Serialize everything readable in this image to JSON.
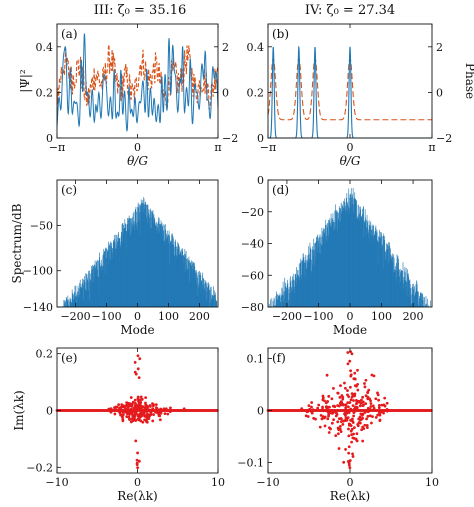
{
  "column_titles": {
    "left": "III: ζ₀ = 35.16",
    "right": "IV: ζ₀ = 27.34"
  },
  "colors": {
    "blue": "#1f77b4",
    "orange": "#d9541a",
    "red": "#e41a1c",
    "axis": "#111111"
  },
  "chart_data": [
    {
      "id": "a",
      "panel_label": "(a)",
      "type": "line",
      "xlabel": "θ/G",
      "ylabel": "|Ψ|²",
      "y2label": "",
      "xlim": [
        -3.1416,
        3.1416
      ],
      "ylim": [
        0,
        0.5
      ],
      "y2lim": [
        -2,
        3
      ],
      "xticks": [
        "−π",
        "0",
        "π"
      ],
      "yticks": [
        "0",
        "0.2",
        "0.4"
      ],
      "y2ticks": [
        "−2",
        "0",
        "2"
      ],
      "series": [
        {
          "axis": "left",
          "style": "solid",
          "color": "#1f77b4",
          "description_values": {
            "peak_max": 0.44,
            "typical_peak": 0.25,
            "n_peaks_approx": 40
          }
        },
        {
          "axis": "right",
          "style": "dashed",
          "color": "#d9541a",
          "description_values": {
            "range": [
              -1.2,
              2.2
            ]
          }
        }
      ]
    },
    {
      "id": "b",
      "panel_label": "(b)",
      "type": "line",
      "xlabel": "θ/G",
      "ylabel": "",
      "y2label": "Phase",
      "xlim": [
        -3.1416,
        3.1416
      ],
      "ylim": [
        0,
        0.5
      ],
      "y2lim": [
        -2,
        3
      ],
      "xticks": [
        "−π",
        "0",
        "π"
      ],
      "yticks": [
        "0",
        "0.2",
        "0.4"
      ],
      "y2ticks": [
        "−2",
        "0",
        "2"
      ],
      "pulse_positions": [
        -2.94,
        -1.96,
        -1.34,
        0.0
      ],
      "pulse_amplitudes": [
        0.4,
        0.4,
        0.4,
        0.4
      ],
      "phase_background": -1.2,
      "phase_peak": 1.5
    },
    {
      "id": "c",
      "panel_label": "(c)",
      "type": "bar",
      "xlabel": "Mode",
      "ylabel": "Spectrum/dB",
      "xlim": [
        -260,
        260
      ],
      "ylim": [
        -140,
        0
      ],
      "xticks": [
        -200,
        -100,
        0,
        100,
        200
      ],
      "yticks": [
        -140,
        -100,
        -50
      ],
      "ytick_labels": [
        "−140",
        "−100",
        "−50"
      ],
      "envelope": {
        "peak_db": -15,
        "edge_db": -130,
        "peak_mode": 20
      }
    },
    {
      "id": "d",
      "panel_label": "(d)",
      "type": "bar",
      "xlabel": "Mode",
      "ylabel": "",
      "xlim": [
        -260,
        260
      ],
      "ylim": [
        -80,
        0
      ],
      "xticks": [
        -200,
        -100,
        0,
        100,
        200
      ],
      "yticks": [
        -80,
        -60,
        -40,
        -20,
        0
      ],
      "ytick_labels": [
        "−80",
        "−60",
        "−40",
        "−20",
        "0"
      ],
      "envelope": {
        "peak_db": -2,
        "edge_db": -75,
        "peak_mode": 0
      }
    },
    {
      "id": "e",
      "panel_label": "(e)",
      "type": "scatter",
      "xlabel": "Re(λk)",
      "ylabel": "Im(λk)",
      "xlim": [
        -10,
        10
      ],
      "ylim": [
        -0.22,
        0.22
      ],
      "xticks": [
        -10,
        0,
        10
      ],
      "xtick_labels": [
        "−10",
        "0",
        "10"
      ],
      "yticks": [
        -0.2,
        0,
        0.2
      ],
      "ytick_labels": [
        "−0.2",
        "0",
        "0.2"
      ],
      "cluster": {
        "x_spread": 3.0,
        "y_spread": 0.04,
        "line_extent": 10
      }
    },
    {
      "id": "f",
      "panel_label": "(f)",
      "type": "scatter",
      "xlabel": "Re(λk)",
      "ylabel": "",
      "xlim": [
        -10,
        10
      ],
      "ylim": [
        -0.12,
        0.12
      ],
      "xticks": [
        -10,
        0,
        10
      ],
      "xtick_labels": [
        "−10",
        "0",
        "10"
      ],
      "yticks": [
        -0.1,
        0,
        0.1
      ],
      "ytick_labels": [
        "−0.1",
        "0",
        "0.1"
      ],
      "cluster": {
        "x_spread": 4.0,
        "y_spread": 0.06,
        "line_extent": 10
      }
    }
  ]
}
